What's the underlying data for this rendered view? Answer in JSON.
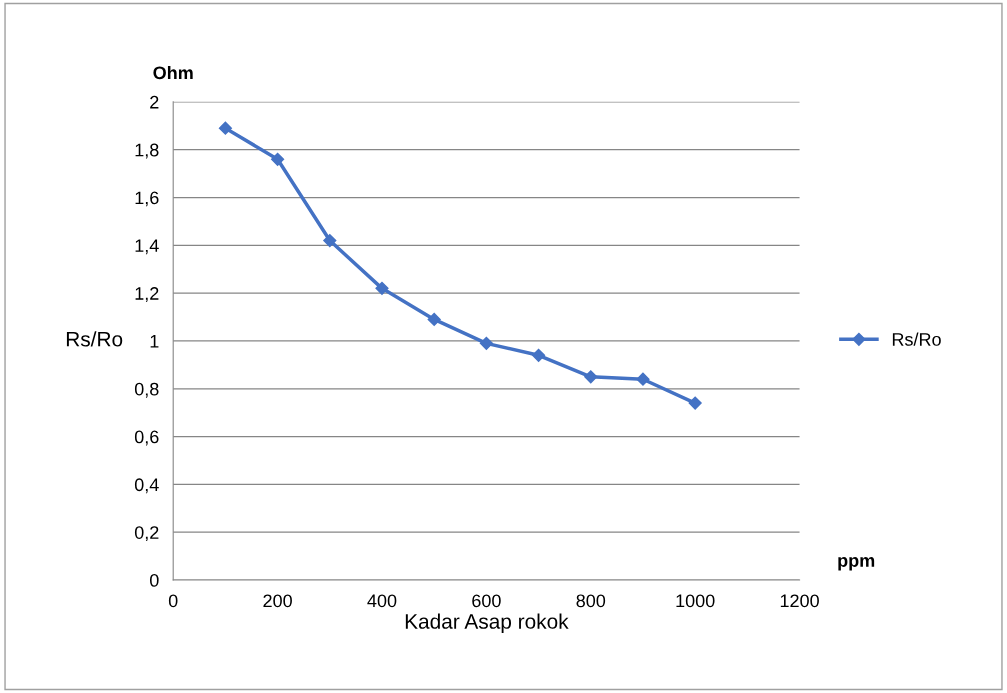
{
  "chart_data": {
    "type": "line",
    "x": [
      100,
      200,
      300,
      400,
      500,
      600,
      700,
      800,
      900,
      1000
    ],
    "series": [
      {
        "name": "Rs/Ro",
        "color": "#4472c4",
        "values": [
          1.89,
          1.76,
          1.42,
          1.22,
          1.09,
          0.99,
          0.94,
          0.85,
          0.84,
          0.74
        ]
      }
    ],
    "xlabel": "Kadar Asap rokok",
    "ylabel": "Rs/Ro",
    "annotations": [
      "Ohm",
      "ppm"
    ],
    "xlim": [
      0,
      1200
    ],
    "xticks": [
      0,
      200,
      400,
      600,
      800,
      1000,
      1200
    ],
    "ylim": [
      0,
      2
    ],
    "yticks": [
      0,
      {
        "value": 0.2,
        "label": "0,2"
      },
      {
        "value": 0.4,
        "label": "0,4"
      },
      {
        "value": 0.6,
        "label": "0,6"
      },
      {
        "value": 0.8,
        "label": "0,8"
      },
      1,
      {
        "value": 1.2,
        "label": "1,2"
      },
      {
        "value": 1.4,
        "label": "1,4"
      },
      {
        "value": 1.6,
        "label": "1,6"
      },
      {
        "value": 1.8,
        "label": "1,8"
      },
      2
    ],
    "grid": "y",
    "legend": "right",
    "marker": "diamond",
    "line_style": "solid"
  }
}
